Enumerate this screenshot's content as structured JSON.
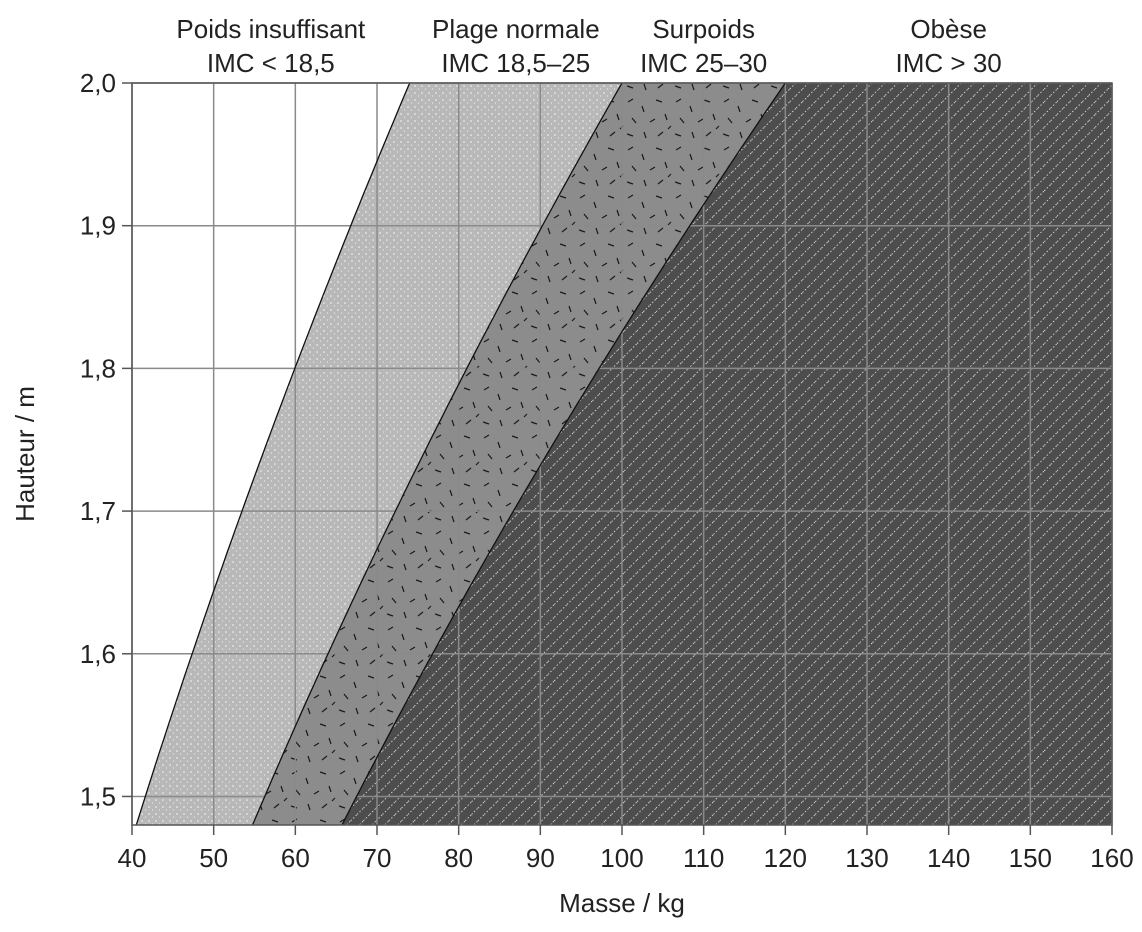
{
  "chart_data": {
    "type": "area",
    "title": "",
    "xlabel": "Masse / kg",
    "ylabel": "Hauteur / m",
    "xlim": [
      40,
      160
    ],
    "ylim": [
      1.48,
      2.0
    ],
    "x_ticks": [
      40,
      50,
      60,
      70,
      80,
      90,
      100,
      110,
      120,
      130,
      140,
      150,
      160
    ],
    "x_tick_labels": [
      "40",
      "50",
      "60",
      "70",
      "80",
      "90",
      "100",
      "110",
      "120",
      "130",
      "140",
      "150",
      "160"
    ],
    "y_ticks": [
      1.5,
      1.6,
      1.7,
      1.8,
      1.9,
      2.0
    ],
    "y_tick_labels": [
      "1,5",
      "1,6",
      "1,7",
      "1,8",
      "1,9",
      "2,0"
    ],
    "grid": true,
    "boundaries_bmi": [
      18.5,
      25,
      30
    ],
    "bands": [
      {
        "name": "Poids insuffisant",
        "range": "IMC < 18,5",
        "bmi_min": 0,
        "bmi_max": 18.5,
        "color": "#ffffff",
        "pattern": "none"
      },
      {
        "name": "Plage normale",
        "range": "IMC 18,5–25",
        "bmi_min": 18.5,
        "bmi_max": 25,
        "color": "#b8b8b8",
        "pattern": "dots"
      },
      {
        "name": "Surpoids",
        "range": "IMC 25–30",
        "bmi_min": 25,
        "bmi_max": 30,
        "color": "#8c8c8c",
        "pattern": "dashes"
      },
      {
        "name": "Obèse",
        "range": "IMC > 30",
        "bmi_min": 30,
        "bmi_max": null,
        "color": "#4d4d4d",
        "pattern": "diagonal-dots"
      }
    ]
  }
}
